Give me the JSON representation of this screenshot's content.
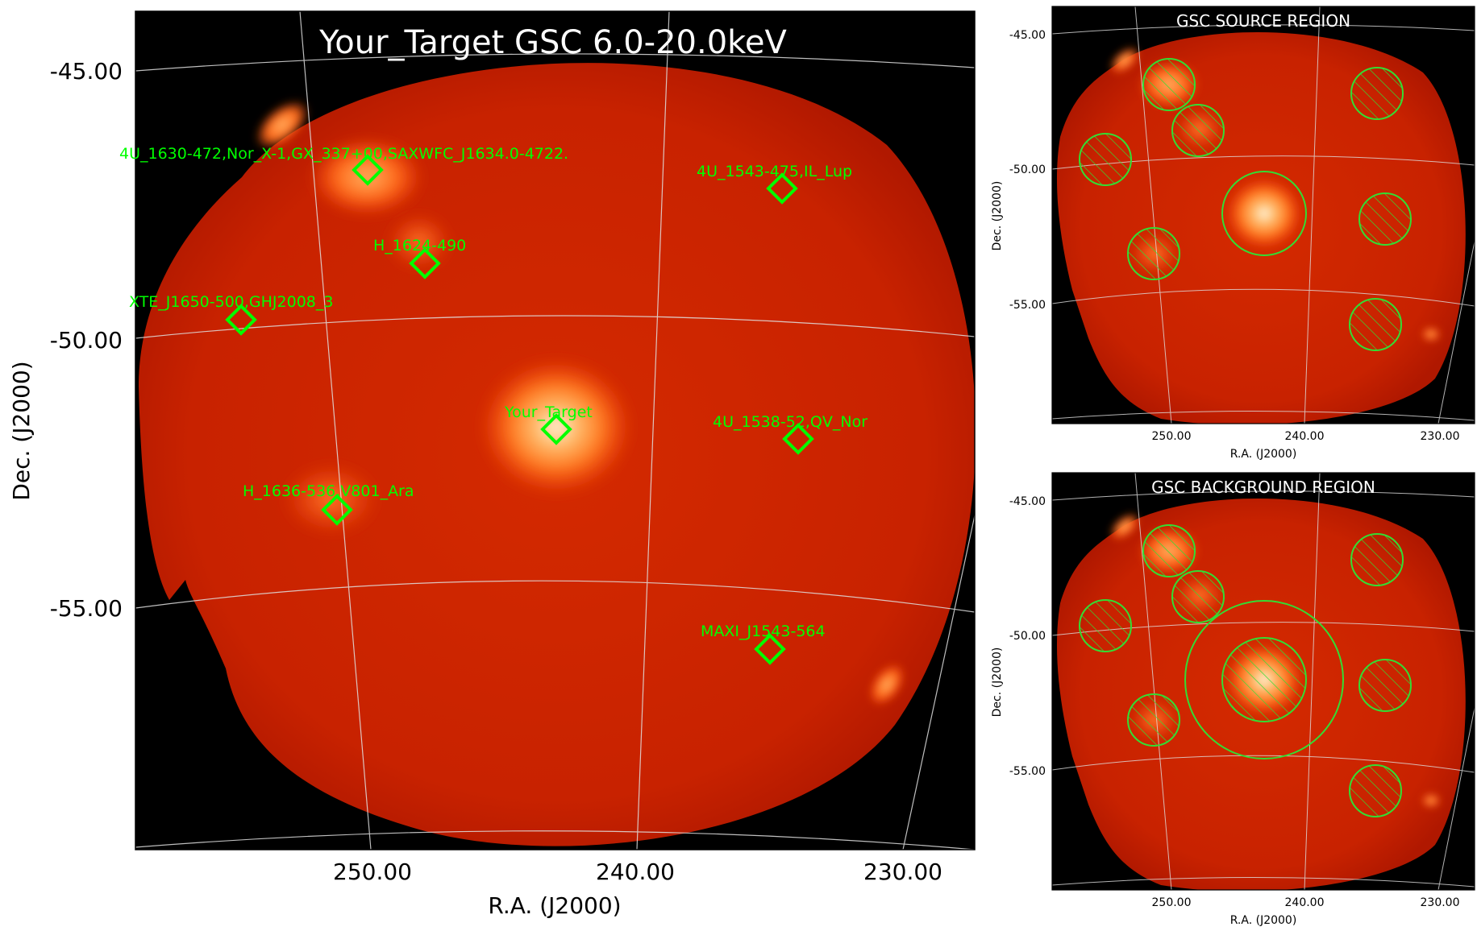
{
  "main_panel": {
    "title": "Your_Target GSC 6.0-20.0keV",
    "xlabel": "R.A. (J2000)",
    "ylabel": "Dec. (J2000)",
    "dec_ticks": [
      "-45.00",
      "-50.00",
      "-55.00"
    ],
    "ra_ticks": [
      "250.00",
      "240.00",
      "230.00"
    ],
    "sources": [
      {
        "label": "4U_1630-472,Nor_X-1,GX_337+00,SAXWFC_J1634.0-4722."
      },
      {
        "label": "4U_1543-475,IL_Lup"
      },
      {
        "label": "H_1624-490"
      },
      {
        "label": "XTE_J1650-500,GHJ2008_3"
      },
      {
        "label": "Your_Target"
      },
      {
        "label": "4U_1538-52,QV_Nor"
      },
      {
        "label": "H_1636-536,V801_Ara"
      },
      {
        "label": "MAXI_J1543-564"
      }
    ]
  },
  "source_panel": {
    "title": "GSC SOURCE REGION",
    "xlabel": "R.A. (J2000)",
    "ylabel": "Dec. (J2000)",
    "dec_ticks": [
      "-45.00",
      "-50.00",
      "-55.00"
    ],
    "ra_ticks": [
      "250.00",
      "240.00",
      "230.00"
    ]
  },
  "background_panel": {
    "title": "GSC BACKGROUND REGION",
    "xlabel": "R.A. (J2000)",
    "ylabel": "Dec. (J2000)",
    "dec_ticks": [
      "-45.00",
      "-50.00",
      "-55.00"
    ],
    "ra_ticks": [
      "250.00",
      "240.00",
      "230.00"
    ]
  },
  "colors": {
    "marker": "#00ff00",
    "sky": "#cc2200",
    "grid": "#dddddd",
    "outside": "#000000"
  }
}
